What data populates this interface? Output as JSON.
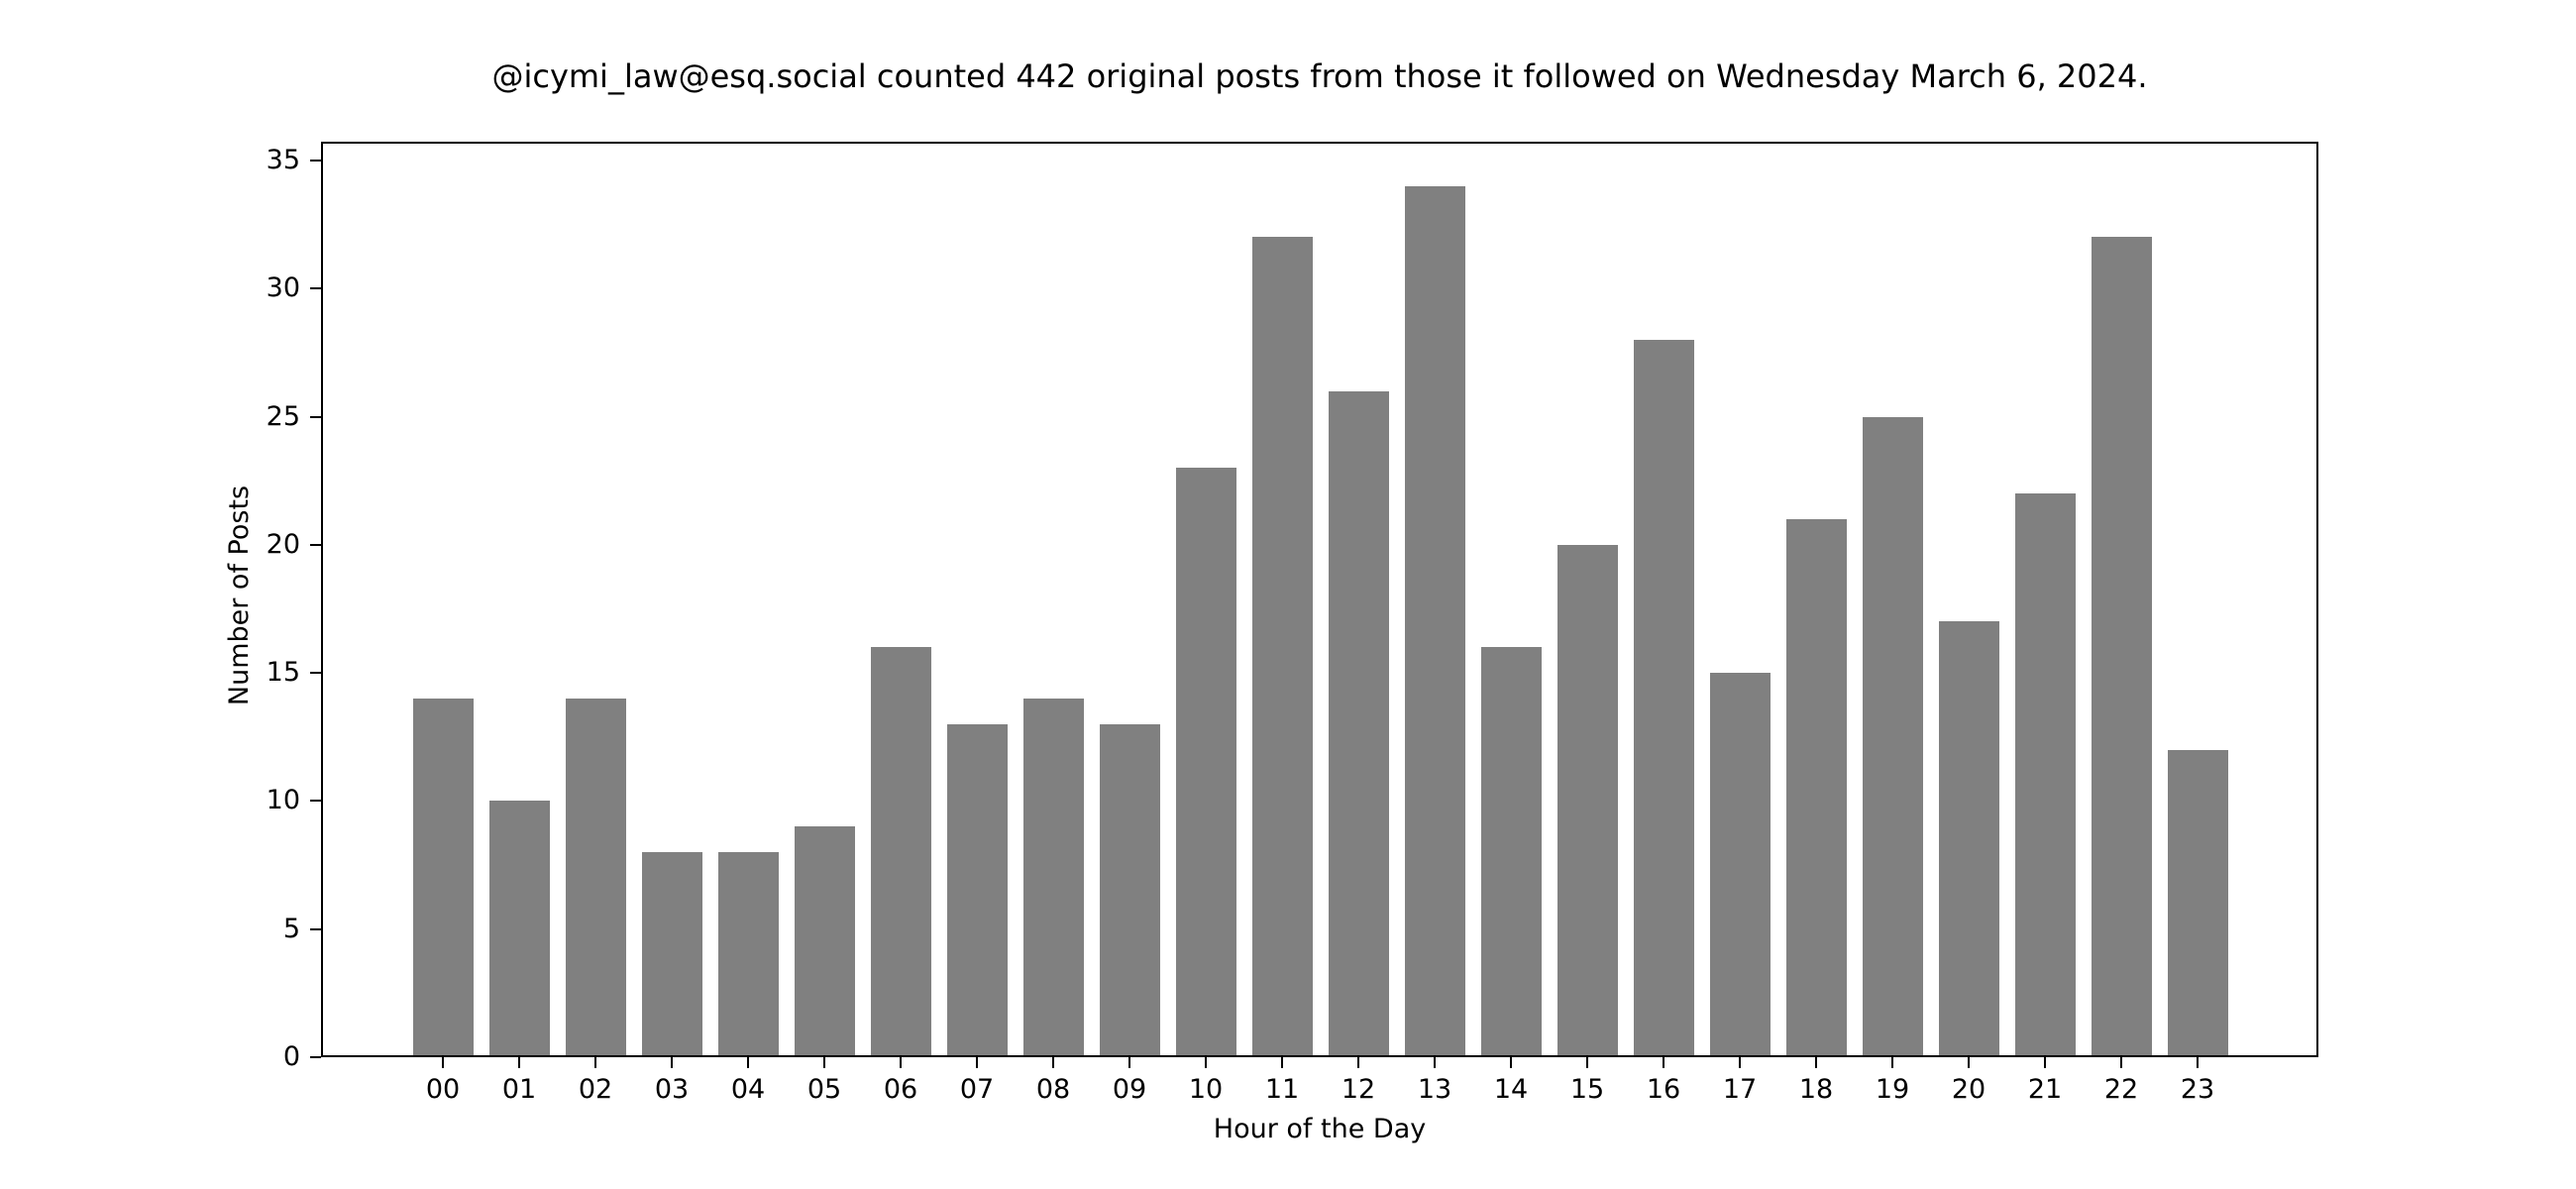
{
  "chart_data": {
    "type": "bar",
    "title": "@icymi_law@esq.social counted 442 original posts from those it followed on Wednesday March 6, 2024.",
    "xlabel": "Hour of the Day",
    "ylabel": "Number of Posts",
    "categories": [
      "00",
      "01",
      "02",
      "03",
      "04",
      "05",
      "06",
      "07",
      "08",
      "09",
      "10",
      "11",
      "12",
      "13",
      "14",
      "15",
      "16",
      "17",
      "18",
      "19",
      "20",
      "21",
      "22",
      "23"
    ],
    "values": [
      14,
      10,
      14,
      8,
      8,
      9,
      16,
      13,
      14,
      13,
      23,
      32,
      26,
      34,
      16,
      20,
      28,
      15,
      21,
      25,
      17,
      22,
      32,
      12
    ],
    "yticks": [
      0,
      5,
      10,
      15,
      20,
      25,
      30,
      35
    ],
    "ylim": [
      0,
      35.7
    ],
    "grid": false,
    "legend": null,
    "bar_color": "#808080"
  }
}
